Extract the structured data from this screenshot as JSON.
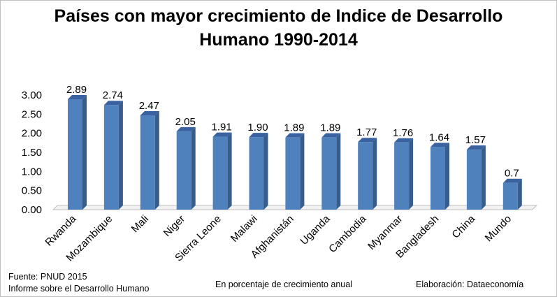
{
  "title_line1": "Países con mayor crecimiento de Indice de Desarrollo",
  "title_line2": "Humano 1990-2014",
  "footer": {
    "source_line1": "Fuente: PNUD  2015",
    "source_line2": "Informe sobre el Desarrollo Humano",
    "note": "En porcentaje de crecimiento anual",
    "credit": "Elaboración: Dataeconomía"
  },
  "chart_data": {
    "type": "bar",
    "categories": [
      "Rwanda",
      "Mozambique",
      "Mali",
      "Niger",
      "Sierra Leone",
      "Malawi",
      "Afghanistán",
      "Uganda",
      "Cambodia",
      "Myanmar",
      "Bangladesh",
      "China",
      "Mundo"
    ],
    "values": [
      2.89,
      2.74,
      2.47,
      2.05,
      1.91,
      1.9,
      1.89,
      1.89,
      1.77,
      1.76,
      1.64,
      1.57,
      0.7
    ],
    "value_labels": [
      "2.89",
      "2.74",
      "2.47",
      "2.05",
      "1.91",
      "1.90",
      "1.89",
      "1.89",
      "1.77",
      "1.76",
      "1.64",
      "1.57",
      "0.7"
    ],
    "y_ticks": [
      "0.00",
      "0.50",
      "1.00",
      "1.50",
      "2.00",
      "2.50",
      "3.00"
    ],
    "ylim": [
      0,
      3
    ],
    "grid": false,
    "bar_color": "#4f81bd",
    "bar_side_color": "#385d8a",
    "bar_top_color": "#3a62a0"
  }
}
